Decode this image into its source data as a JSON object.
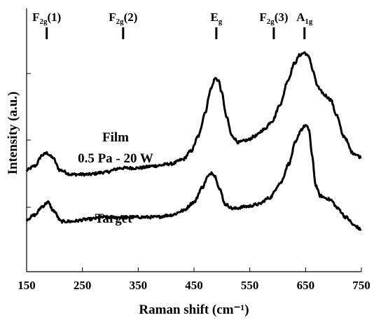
{
  "chart_data": {
    "type": "line",
    "title": "",
    "xlabel": "Raman shift (cm⁻¹)",
    "ylabel": "Intensity (a.u.)",
    "xlim": [
      150,
      750
    ],
    "xticks": [
      150,
      250,
      350,
      450,
      550,
      650,
      750
    ],
    "x_tick_labels": [
      "150",
      "250",
      "350",
      "450",
      "550",
      "650",
      "750"
    ],
    "y_ticks_shown": false,
    "ylim": [
      0,
      100
    ],
    "grid": false,
    "legend": "none",
    "line_color": "#000000",
    "peaks": [
      {
        "main": "F",
        "sub": "2g",
        "suffix": "(1)",
        "x": 186
      },
      {
        "main": "F",
        "sub": "2g",
        "suffix": "(2)",
        "x": 323
      },
      {
        "main": "E",
        "sub": "g",
        "suffix": "",
        "x": 490
      },
      {
        "main": "F",
        "sub": "2g",
        "suffix": "(3)",
        "x": 593
      },
      {
        "main": "A",
        "sub": "1g",
        "suffix": "",
        "x": 648
      }
    ],
    "series": [
      {
        "name": "Film",
        "label_lines": [
          "Film",
          "0.5 Pa - 20 W"
        ],
        "points": [
          [
            150,
            40
          ],
          [
            165,
            42
          ],
          [
            178,
            47
          ],
          [
            186,
            48
          ],
          [
            196,
            46
          ],
          [
            210,
            40
          ],
          [
            230,
            38
          ],
          [
            260,
            38
          ],
          [
            290,
            39
          ],
          [
            320,
            41
          ],
          [
            350,
            41
          ],
          [
            380,
            42
          ],
          [
            410,
            43
          ],
          [
            430,
            45
          ],
          [
            445,
            49
          ],
          [
            458,
            56
          ],
          [
            470,
            67
          ],
          [
            480,
            78
          ],
          [
            488,
            83
          ],
          [
            494,
            82
          ],
          [
            500,
            76
          ],
          [
            508,
            65
          ],
          [
            518,
            56
          ],
          [
            530,
            53
          ],
          [
            545,
            54
          ],
          [
            560,
            56
          ],
          [
            575,
            59
          ],
          [
            590,
            63
          ],
          [
            605,
            71
          ],
          [
            618,
            82
          ],
          [
            630,
            90
          ],
          [
            640,
            94
          ],
          [
            648,
            95
          ],
          [
            656,
            93
          ],
          [
            664,
            86
          ],
          [
            670,
            80
          ],
          [
            677,
            77
          ],
          [
            685,
            75
          ],
          [
            695,
            73
          ],
          [
            705,
            66
          ],
          [
            718,
            56
          ],
          [
            735,
            48
          ],
          [
            750,
            46
          ]
        ]
      },
      {
        "name": "Target",
        "label_lines": [
          "Target"
        ],
        "points": [
          [
            150,
            17
          ],
          [
            165,
            19
          ],
          [
            178,
            23
          ],
          [
            188,
            25
          ],
          [
            198,
            21
          ],
          [
            212,
            16
          ],
          [
            230,
            16
          ],
          [
            260,
            17
          ],
          [
            290,
            18
          ],
          [
            320,
            18
          ],
          [
            350,
            18
          ],
          [
            380,
            18
          ],
          [
            410,
            19
          ],
          [
            430,
            21
          ],
          [
            450,
            25
          ],
          [
            465,
            32
          ],
          [
            475,
            37
          ],
          [
            482,
            39
          ],
          [
            488,
            37
          ],
          [
            496,
            31
          ],
          [
            506,
            24
          ],
          [
            520,
            22
          ],
          [
            545,
            23
          ],
          [
            565,
            24
          ],
          [
            585,
            27
          ],
          [
            605,
            34
          ],
          [
            620,
            43
          ],
          [
            632,
            53
          ],
          [
            642,
            59
          ],
          [
            650,
            61
          ],
          [
            656,
            59
          ],
          [
            662,
            46
          ],
          [
            668,
            33
          ],
          [
            676,
            28
          ],
          [
            686,
            27
          ],
          [
            695,
            26
          ],
          [
            708,
            22
          ],
          [
            722,
            18
          ],
          [
            738,
            14
          ],
          [
            750,
            12
          ]
        ]
      }
    ]
  }
}
